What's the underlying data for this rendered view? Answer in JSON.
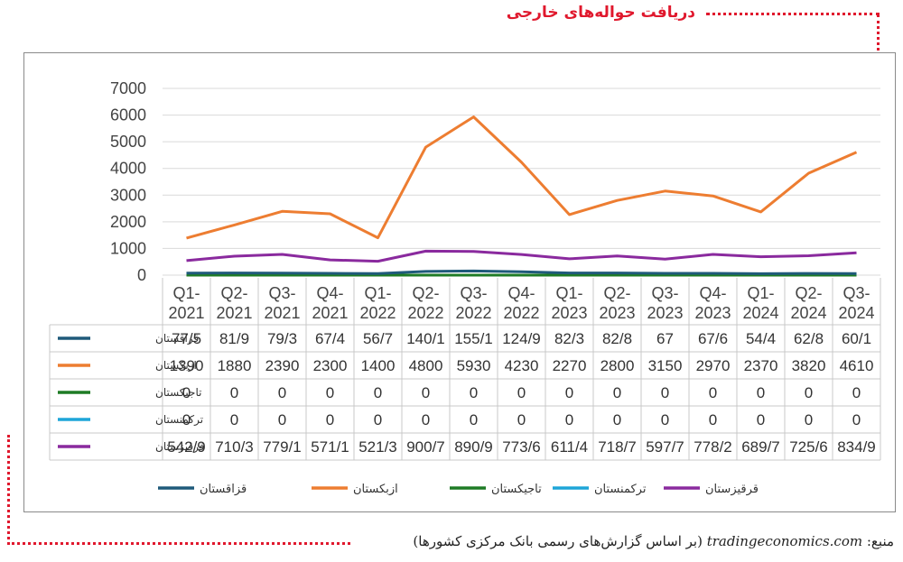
{
  "header": {
    "title": "دریافت حواله‌های خارجی"
  },
  "source": {
    "prefix": "منبع:",
    "site": "tradingeconomics.com",
    "note": "(بر اساس گزارش‌های رسمی بانک مرکزی کشورها)"
  },
  "colors": {
    "title": "#e0182d",
    "grid": "#d9d9d9"
  },
  "chart_data": {
    "type": "line",
    "title": "",
    "xlabel": "",
    "ylabel": "",
    "ylim": [
      0,
      7000
    ],
    "yticks": [
      "0",
      "1000",
      "2000",
      "3000",
      "4000",
      "5000",
      "6000",
      "7000"
    ],
    "grid": true,
    "legend_position": "bottom",
    "categories": [
      [
        "Q1-",
        "2021"
      ],
      [
        "Q2-",
        "2021"
      ],
      [
        "Q3-",
        "2021"
      ],
      [
        "Q4-",
        "2021"
      ],
      [
        "Q1-",
        "2022"
      ],
      [
        "Q2-",
        "2022"
      ],
      [
        "Q3-",
        "2022"
      ],
      [
        "Q4-",
        "2022"
      ],
      [
        "Q1-",
        "2023"
      ],
      [
        "Q2-",
        "2023"
      ],
      [
        "Q3-",
        "2023"
      ],
      [
        "Q4-",
        "2023"
      ],
      [
        "Q1-",
        "2024"
      ],
      [
        "Q2-",
        "2024"
      ],
      [
        "Q3-",
        "2024"
      ]
    ],
    "series": [
      {
        "name": "قزاقستان",
        "color": "#1f5a7a",
        "values": [
          77.5,
          81.9,
          79.3,
          67.4,
          56.7,
          140.1,
          155.1,
          124.9,
          82.3,
          82.8,
          67,
          67.6,
          54.4,
          62.8,
          60.1
        ],
        "labels": [
          "77/5",
          "81/9",
          "79/3",
          "67/4",
          "56/7",
          "140/1",
          "155/1",
          "124/9",
          "82/3",
          "82/8",
          "67",
          "67/6",
          "54/4",
          "62/8",
          "60/1"
        ]
      },
      {
        "name": "ازبکستان",
        "color": "#ed7d31",
        "values": [
          1390,
          1880,
          2390,
          2300,
          1400,
          4800,
          5930,
          4230,
          2270,
          2800,
          3150,
          2970,
          2370,
          3820,
          4610
        ],
        "labels": [
          "1390",
          "1880",
          "2390",
          "2300",
          "1400",
          "4800",
          "5930",
          "4230",
          "2270",
          "2800",
          "3150",
          "2970",
          "2370",
          "3820",
          "4610"
        ]
      },
      {
        "name": "تاجیکستان",
        "color": "#1e7b25",
        "values": [
          0,
          0,
          0,
          0,
          0,
          0,
          0,
          0,
          0,
          0,
          0,
          0,
          0,
          0,
          0
        ],
        "labels": [
          "0",
          "0",
          "0",
          "0",
          "0",
          "0",
          "0",
          "0",
          "0",
          "0",
          "0",
          "0",
          "0",
          "0",
          "0"
        ]
      },
      {
        "name": "ترکمنستان",
        "color": "#1ea5d8",
        "values": [
          0,
          0,
          0,
          0,
          0,
          0,
          0,
          0,
          0,
          0,
          0,
          0,
          0,
          0,
          0
        ],
        "labels": [
          "0",
          "0",
          "0",
          "0",
          "0",
          "0",
          "0",
          "0",
          "0",
          "0",
          "0",
          "0",
          "0",
          "0",
          "0"
        ]
      },
      {
        "name": "قرقیزستان",
        "color": "#8a2a9e",
        "values": [
          542.9,
          710.3,
          779.1,
          571.1,
          521.3,
          900.7,
          890.9,
          773.6,
          611.4,
          718.7,
          597.7,
          778.2,
          689.7,
          725.6,
          834.9
        ],
        "labels": [
          "542/9",
          "710/3",
          "779/1",
          "571/1",
          "521/3",
          "900/7",
          "890/9",
          "773/6",
          "611/4",
          "718/7",
          "597/7",
          "778/2",
          "689/7",
          "725/6",
          "834/9"
        ]
      }
    ]
  }
}
